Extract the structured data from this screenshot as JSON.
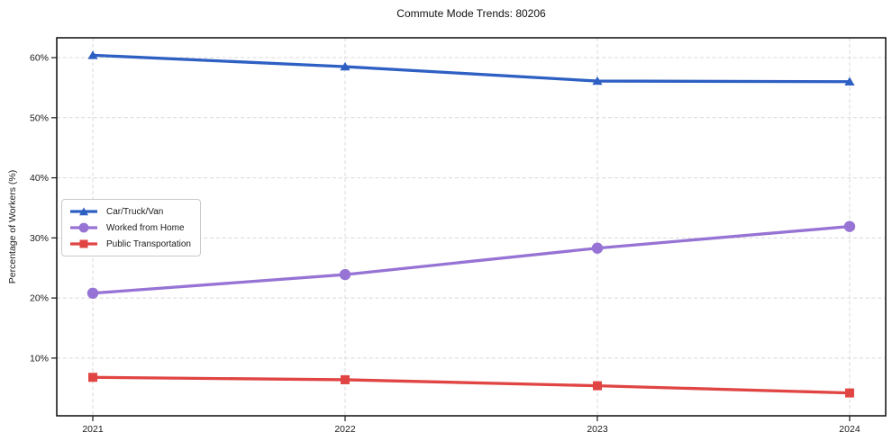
{
  "title": "Commute Mode Trends: 80206",
  "colors": {
    "car": "#2e5fc3",
    "home": "#9673d4",
    "transit": "#e04543",
    "grid": "#d8d8d8",
    "frame": "#1a1a1a",
    "text": "#1a1a1a",
    "background": "#ffffff"
  },
  "chart_data": {
    "type": "line",
    "title": "Commute Mode Trends: 80206",
    "xlabel": "",
    "ylabel": "Percentage of Workers (%)",
    "categories": [
      "2021",
      "2022",
      "2023",
      "2024"
    ],
    "series": [
      {
        "name": "Car/Truck/Van",
        "color": "#2e5fc3",
        "marker": "triangle",
        "values": [
          60.4,
          58.5,
          56.1,
          56.0
        ]
      },
      {
        "name": "Worked from Home",
        "color": "#9673d4",
        "marker": "circle",
        "values": [
          20.8,
          23.9,
          28.3,
          31.9
        ]
      },
      {
        "name": "Public Transportation",
        "color": "#e04543",
        "marker": "square",
        "values": [
          6.8,
          6.4,
          5.4,
          4.2
        ]
      }
    ],
    "y_ticks": [
      10,
      20,
      30,
      40,
      50,
      60
    ],
    "y_tick_suffix": "%",
    "ylim": [
      0.4,
      63.3
    ],
    "grid": true,
    "grid_style": "dashed",
    "legend_position": "center-left",
    "x_padding_frac": 0.0435
  }
}
